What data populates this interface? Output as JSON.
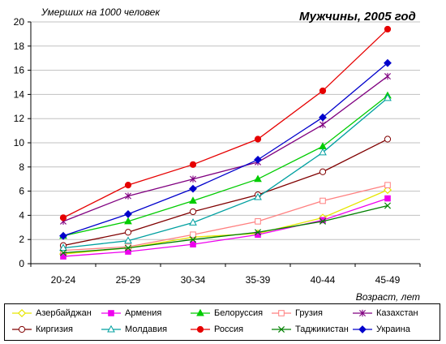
{
  "chart_data": {
    "type": "line",
    "title": "Мужчины, 2005 год",
    "ylabel": "Умерших на 1000 человек",
    "xlabel": "Возраст, лет",
    "categories": [
      "20-24",
      "25-29",
      "30-34",
      "35-39",
      "40-44",
      "45-49"
    ],
    "ylim": [
      0,
      20
    ],
    "yticks": [
      0,
      2,
      4,
      6,
      8,
      10,
      12,
      14,
      16,
      18,
      20
    ],
    "grid": "horizontal",
    "legend_position": "bottom",
    "series": [
      {
        "name": "Азербайджан",
        "color": "#E6E600",
        "marker": "diamond-open",
        "values": [
          0.8,
          1.3,
          2.2,
          2.5,
          3.8,
          6.1
        ]
      },
      {
        "name": "Армения",
        "color": "#EE00EE",
        "marker": "square",
        "values": [
          0.6,
          1.0,
          1.6,
          2.4,
          3.6,
          5.4
        ]
      },
      {
        "name": "Белоруссия",
        "color": "#00CC00",
        "marker": "triangle",
        "values": [
          2.3,
          3.5,
          5.2,
          7.0,
          9.7,
          13.9
        ]
      },
      {
        "name": "Грузия",
        "color": "#FF8080",
        "marker": "square-open",
        "values": [
          1.1,
          1.4,
          2.4,
          3.5,
          5.2,
          6.5
        ]
      },
      {
        "name": "Казахстан",
        "color": "#800080",
        "marker": "star",
        "values": [
          3.5,
          5.6,
          7.0,
          8.4,
          11.5,
          15.5
        ]
      },
      {
        "name": "Киргизия",
        "color": "#800000",
        "marker": "circle-open",
        "values": [
          1.5,
          2.6,
          4.3,
          5.7,
          7.6,
          10.3
        ]
      },
      {
        "name": "Молдавия",
        "color": "#00A0A0",
        "marker": "triangle-open",
        "values": [
          1.3,
          1.9,
          3.4,
          5.5,
          9.2,
          13.7
        ]
      },
      {
        "name": "Россия",
        "color": "#E60000",
        "marker": "circle",
        "values": [
          3.8,
          6.5,
          8.2,
          10.3,
          14.3,
          19.4
        ]
      },
      {
        "name": "Таджикистан",
        "color": "#008000",
        "marker": "x",
        "values": [
          0.9,
          1.3,
          2.0,
          2.6,
          3.5,
          4.8
        ]
      },
      {
        "name": "Украина",
        "color": "#0000CC",
        "marker": "diamond",
        "values": [
          2.3,
          4.1,
          6.2,
          8.6,
          12.1,
          16.6
        ]
      }
    ]
  }
}
